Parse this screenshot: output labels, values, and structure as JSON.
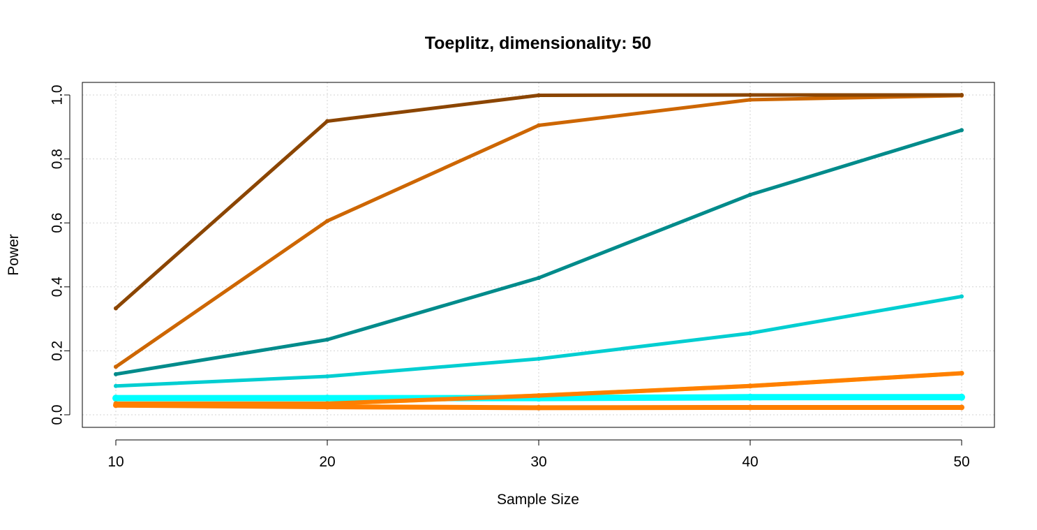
{
  "chart_data": {
    "type": "line",
    "title": "Toeplitz, dimensionality: 50",
    "xlabel": "Sample Size",
    "ylabel": "Power",
    "x": [
      10,
      20,
      30,
      40,
      50
    ],
    "xticks": [
      "10",
      "20",
      "30",
      "40",
      "50"
    ],
    "yticks": [
      "0.0",
      "0.2",
      "0.4",
      "0.6",
      "0.8",
      "1.0"
    ],
    "xlim": [
      10,
      50
    ],
    "ylim": [
      0,
      1
    ],
    "grid": true,
    "legend": false,
    "series": [
      {
        "color": "#ffff00",
        "width": 6,
        "values": [
          0.035,
          0.035,
          0.06,
          0.09,
          0.13
        ]
      },
      {
        "color": "#00ffff",
        "width": 9,
        "values": [
          0.052,
          0.052,
          0.052,
          0.055,
          0.055
        ]
      },
      {
        "color": "#ff7f00",
        "width": 7,
        "values": [
          0.03,
          0.025,
          0.022,
          0.023,
          0.023
        ]
      },
      {
        "color": "#ff7f00",
        "width": 6,
        "values": [
          0.035,
          0.035,
          0.06,
          0.09,
          0.13
        ]
      },
      {
        "color": "#00ced1",
        "width": 5,
        "values": [
          0.09,
          0.12,
          0.175,
          0.255,
          0.37
        ]
      },
      {
        "color": "#008b8b",
        "width": 5,
        "values": [
          0.127,
          0.235,
          0.428,
          0.688,
          0.89
        ]
      },
      {
        "color": "#cd6600",
        "width": 5,
        "values": [
          0.15,
          0.606,
          0.905,
          0.985,
          0.998
        ]
      },
      {
        "color": "#8b4500",
        "width": 5,
        "values": [
          0.333,
          0.918,
          0.999,
          1.0,
          1.0
        ]
      }
    ]
  }
}
